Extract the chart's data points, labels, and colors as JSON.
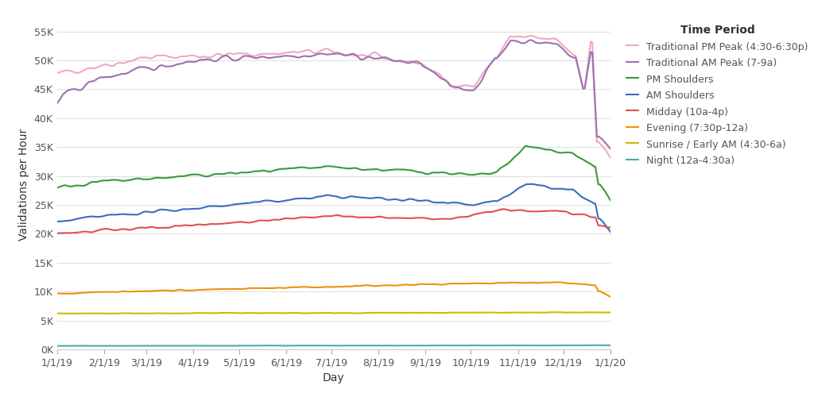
{
  "title": "",
  "xlabel": "Day",
  "ylabel": "Validations per Hour",
  "legend_title": "Time Period",
  "series": [
    {
      "label": "Traditional PM Peak (4:30-6:30p)",
      "color": "#f4a6c0"
    },
    {
      "label": "Traditional AM Peak (7-9a)",
      "color": "#9b72b0"
    },
    {
      "label": "PM Shoulders",
      "color": "#3a9a3a"
    },
    {
      "label": "AM Shoulders",
      "color": "#3a6dbf"
    },
    {
      "label": "Midday (10a-4p)",
      "color": "#e05050"
    },
    {
      "label": "Evening (7:30p-12a)",
      "color": "#f0900a"
    },
    {
      "label": "Sunrise / Early AM (4:30-6a)",
      "color": "#d4b800"
    },
    {
      "label": "Night (12a-4:30a)",
      "color": "#4aacaa"
    }
  ],
  "ylim": [
    0,
    57000
  ],
  "yticks": [
    0,
    5000,
    10000,
    15000,
    20000,
    25000,
    30000,
    35000,
    40000,
    45000,
    50000,
    55000
  ],
  "ytick_labels": [
    "0K",
    "5K",
    "10K",
    "15K",
    "20K",
    "25K",
    "30K",
    "35K",
    "40K",
    "45K",
    "50K",
    "55K"
  ],
  "xtick_labels": [
    "1/1/19",
    "2/1/19",
    "3/1/19",
    "4/1/19",
    "5/1/19",
    "6/1/19",
    "7/1/19",
    "8/1/19",
    "9/1/19",
    "10/1/19",
    "11/1/19",
    "12/1/19",
    "1/1/20"
  ],
  "background_color": "#ffffff",
  "grid_color": "#e0e0e0",
  "linewidth": 1.5,
  "tick_color": "#aaaaaa",
  "label_color": "#555555",
  "figsize": [
    10.24,
    5.0
  ],
  "dpi": 100
}
